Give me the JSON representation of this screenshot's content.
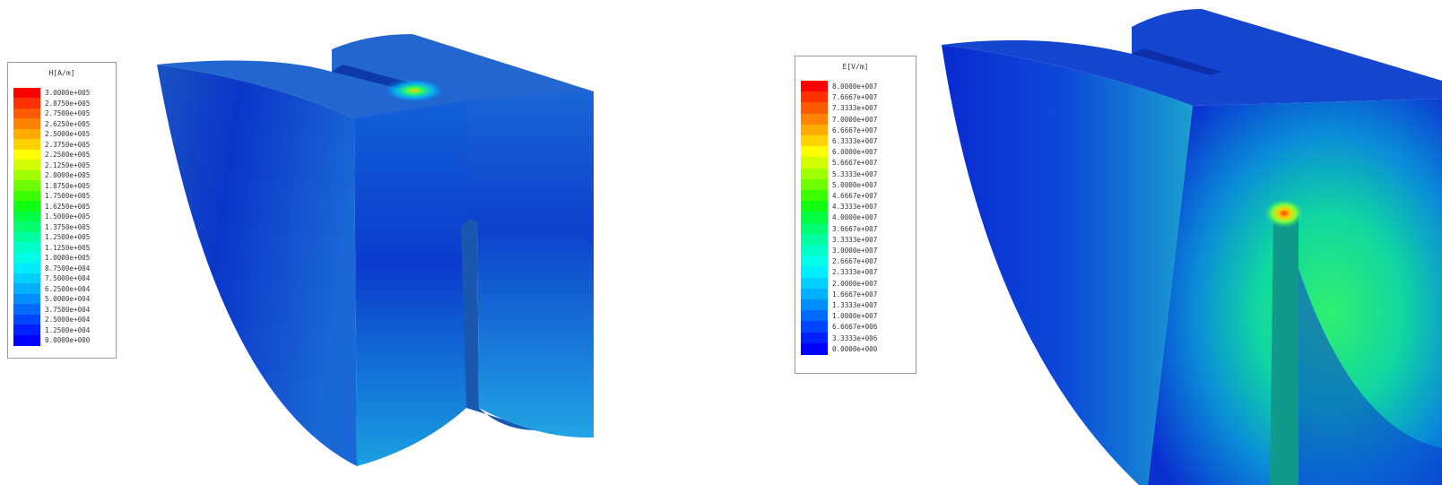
{
  "figures": [
    {
      "id": "h-field",
      "legend": {
        "title": "H[A/m]",
        "values": [
          "3.0000e+005",
          "2.8750e+005",
          "2.7500e+005",
          "2.6250e+005",
          "2.5000e+005",
          "2.3750e+005",
          "2.2500e+005",
          "2.1250e+005",
          "2.0000e+005",
          "1.8750e+005",
          "1.7500e+005",
          "1.6250e+005",
          "1.5000e+005",
          "1.3750e+005",
          "1.2500e+005",
          "1.1250e+005",
          "1.0000e+005",
          "8.7500e+004",
          "7.5000e+004",
          "6.2500e+004",
          "5.0000e+004",
          "3.7500e+004",
          "2.5000e+004",
          "1.2500e+004",
          "0.0000e+000"
        ],
        "colors": [
          "#ff0000",
          "#ff3000",
          "#ff5a00",
          "#ff8200",
          "#ffab00",
          "#ffd200",
          "#ffff00",
          "#d2ff00",
          "#a0ff00",
          "#6eff00",
          "#3cff00",
          "#10ff10",
          "#00ff40",
          "#00ff70",
          "#00ffa0",
          "#00ffc8",
          "#00ffe6",
          "#00ecff",
          "#00d0ff",
          "#00b0ff",
          "#008eff",
          "#006aff",
          "#0046ff",
          "#0020ff",
          "#0000ff"
        ]
      }
    },
    {
      "id": "e-field",
      "legend": {
        "title": "E[V/m]",
        "values": [
          "8.0000e+007",
          "7.6667e+007",
          "7.3333e+007",
          "7.0000e+007",
          "6.6667e+007",
          "6.3333e+007",
          "6.0000e+007",
          "5.6667e+007",
          "5.3333e+007",
          "5.0000e+007",
          "4.6667e+007",
          "4.3333e+007",
          "4.0000e+007",
          "3.6667e+007",
          "3.3333e+007",
          "3.0000e+007",
          "2.6667e+007",
          "2.3333e+007",
          "2.0000e+007",
          "1.6667e+007",
          "1.3333e+007",
          "1.0000e+007",
          "6.6667e+006",
          "3.3333e+006",
          "0.0000e+000"
        ],
        "colors": [
          "#ff0000",
          "#ff3000",
          "#ff5a00",
          "#ff8200",
          "#ffab00",
          "#ffd200",
          "#ffff00",
          "#d2ff00",
          "#a0ff00",
          "#6eff00",
          "#3cff00",
          "#10ff10",
          "#00ff40",
          "#00ff70",
          "#00ffa0",
          "#00ffc8",
          "#00ffe6",
          "#00ecff",
          "#00d0ff",
          "#00b0ff",
          "#008eff",
          "#006aff",
          "#0046ff",
          "#0020ff",
          "#0000ff"
        ]
      }
    }
  ]
}
